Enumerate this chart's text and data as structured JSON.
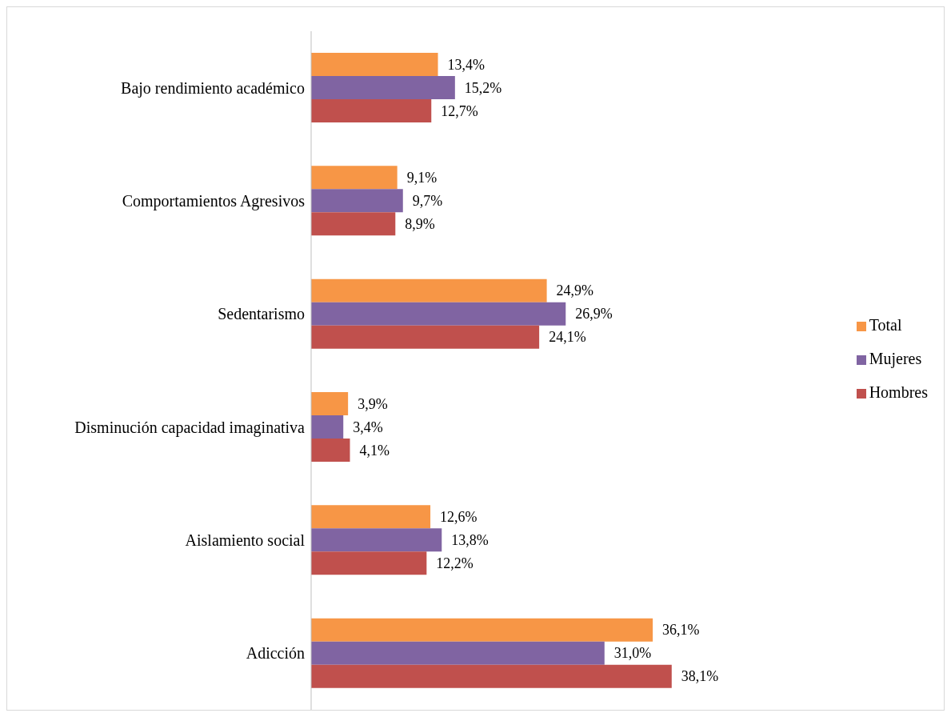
{
  "chart_data": {
    "type": "bar",
    "orientation": "horizontal",
    "categories": [
      "Bajo rendimiento académico",
      "Comportamientos Agresivos",
      "Sedentarismo",
      "Disminución capacidad imaginativa",
      "Aislamiento social",
      "Adicción"
    ],
    "series": [
      {
        "name": "Total",
        "color": "#f79646",
        "values": [
          13.4,
          9.1,
          24.9,
          3.9,
          12.6,
          36.1
        ],
        "value_labels": [
          "13,4%",
          "9,1%",
          "24,9%",
          "3,9%",
          "12,6%",
          "36,1%"
        ]
      },
      {
        "name": "Mujeres",
        "color": "#8064a2",
        "values": [
          15.2,
          9.7,
          26.9,
          3.4,
          13.8,
          31.0
        ],
        "value_labels": [
          "15,2%",
          "9,7%",
          "26,9%",
          "3,4%",
          "13,8%",
          "31,0%"
        ]
      },
      {
        "name": "Hombres",
        "color": "#c0504d",
        "values": [
          12.7,
          8.9,
          24.1,
          4.1,
          12.2,
          38.1
        ],
        "value_labels": [
          "12,7%",
          "8,9%",
          "24,1%",
          "4,1%",
          "12,2%",
          "38,1%"
        ]
      }
    ],
    "legend": "right",
    "tick_labels": "y"
  }
}
